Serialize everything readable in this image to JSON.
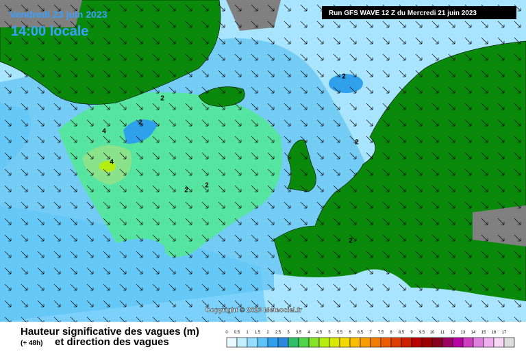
{
  "header": {
    "date": "Vendredi 23 juin 2023",
    "time": "14:00 locale",
    "run": "Run GFS WAVE 12 Z du Mercredi 21 juin 2023"
  },
  "copyright": "Copyright © 2023 Meteociel.fr",
  "contour_labels": [
    "2",
    "2",
    "2",
    "2",
    "2",
    "2",
    "2",
    "4",
    "4"
  ],
  "legend": {
    "title": "Hauteur significative des vagues (m)",
    "lead": "(+ 48h)",
    "subtitle": "et direction des vagues",
    "labels": [
      "0",
      "0.5",
      "1",
      "1.5",
      "2",
      "2.5",
      "3",
      "3.5",
      "4",
      "4.5",
      "5",
      "5.5",
      "6",
      "6.5",
      "7",
      "7.5",
      "8",
      "8.5",
      "9",
      "9.5",
      "10",
      "11",
      "12",
      "13",
      "14",
      "15",
      "16",
      "17"
    ],
    "colors": [
      "#e8faff",
      "#c4efff",
      "#96dcff",
      "#5ec4f8",
      "#2ea0ec",
      "#2b86dc",
      "#2fbf6a",
      "#52d44a",
      "#86e22a",
      "#b4ee10",
      "#d8e800",
      "#f2da00",
      "#f8bc00",
      "#f89c00",
      "#f07c00",
      "#ec5c00",
      "#de3e00",
      "#cc2000",
      "#b80000",
      "#9c0000",
      "#880020",
      "#9c0060",
      "#b800a0",
      "#cc40c0",
      "#de80dc",
      "#eeb0ee",
      "#f6d8f6",
      "#dcdcdc"
    ]
  }
}
